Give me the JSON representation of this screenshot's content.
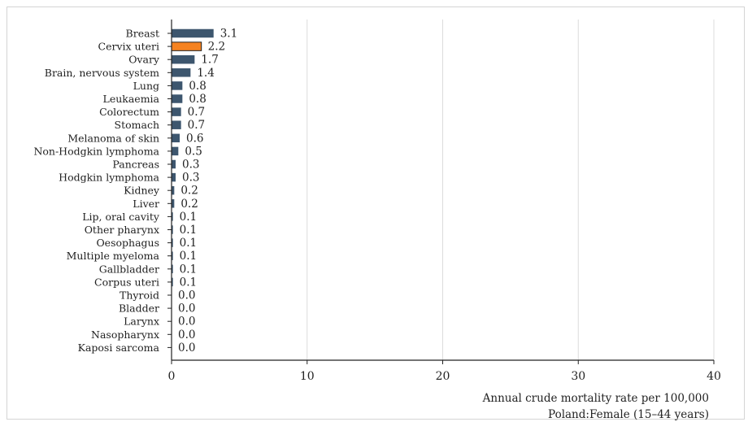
{
  "chart_data": {
    "type": "bar",
    "orientation": "horizontal",
    "categories": [
      "Breast",
      "Cervix uteri",
      "Ovary",
      "Brain, nervous system",
      "Lung",
      "Leukaemia",
      "Colorectum",
      "Stomach",
      "Melanoma of skin",
      "Non-Hodgkin lymphoma",
      "Pancreas",
      "Hodgkin lymphoma",
      "Kidney",
      "Liver",
      "Lip, oral cavity",
      "Other pharynx",
      "Oesophagus",
      "Multiple myeloma",
      "Gallbladder",
      "Corpus uteri",
      "Thyroid",
      "Bladder",
      "Larynx",
      "Nasopharynx",
      "Kaposi sarcoma"
    ],
    "values": [
      3.1,
      2.2,
      1.7,
      1.4,
      0.8,
      0.8,
      0.7,
      0.7,
      0.6,
      0.5,
      0.3,
      0.3,
      0.2,
      0.2,
      0.1,
      0.1,
      0.1,
      0.1,
      0.1,
      0.1,
      0.0,
      0.0,
      0.0,
      0.0,
      0.0
    ],
    "value_labels": [
      "3.1",
      "2.2",
      "1.7",
      "1.4",
      "0.8",
      "0.8",
      "0.7",
      "0.7",
      "0.6",
      "0.5",
      "0.3",
      "0.3",
      "0.2",
      "0.2",
      "0.1",
      "0.1",
      "0.1",
      "0.1",
      "0.1",
      "0.1",
      "0.0",
      "0.0",
      "0.0",
      "0.0",
      "0.0"
    ],
    "highlight_category": "Cervix uteri",
    "bar_color": "#3d566e",
    "highlight_color": "#f58220",
    "xlim": [
      0,
      40
    ],
    "xticks": [
      0,
      10,
      20,
      30,
      40
    ],
    "grid": true,
    "xlabel": "Annual crude mortality rate per 100,000",
    "subtitle": "Poland:Female (15–44 years)"
  }
}
